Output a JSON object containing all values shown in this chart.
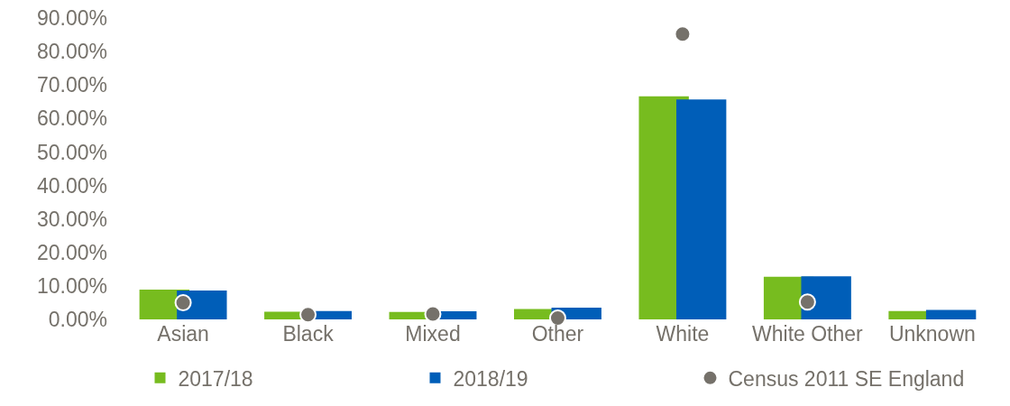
{
  "chart_data": {
    "type": "bar",
    "categories": [
      "Asian",
      "Black",
      "Mixed",
      "Other",
      "White",
      "White Other",
      "Unknown"
    ],
    "series": [
      {
        "name": "2017/18",
        "color": "#77bc1f",
        "values": [
          8.9,
          2.3,
          2.2,
          3.1,
          66.6,
          12.7,
          2.5
        ]
      },
      {
        "name": "2018/19",
        "color": "#005eb8",
        "values": [
          8.6,
          2.5,
          2.4,
          3.5,
          65.7,
          12.9,
          2.8
        ]
      },
      {
        "name": "Census 2011 SE England",
        "type": "scatter",
        "color": "#75716a",
        "marker": "circle",
        "x": [
          "Asian",
          "Black",
          "Mixed",
          "Other",
          "White",
          "White Other",
          "Unknown"
        ],
        "values": [
          5.0,
          1.4,
          1.6,
          0.4,
          85.2,
          5.2,
          null
        ]
      }
    ],
    "ylim": [
      0,
      90
    ],
    "yticks": [
      {
        "value": 0,
        "label": "0.00%"
      },
      {
        "value": 10,
        "label": "10.00%"
      },
      {
        "value": 20,
        "label": "20.00%"
      },
      {
        "value": 30,
        "label": "30.00%"
      },
      {
        "value": 40,
        "label": "40.00%"
      },
      {
        "value": 50,
        "label": "50.00%"
      },
      {
        "value": 60,
        "label": "60.00%"
      },
      {
        "value": 70,
        "label": "70.00%"
      },
      {
        "value": 80,
        "label": "80.00%"
      },
      {
        "value": 90,
        "label": "90.00%"
      }
    ],
    "grid": false,
    "legend": "bottom"
  }
}
